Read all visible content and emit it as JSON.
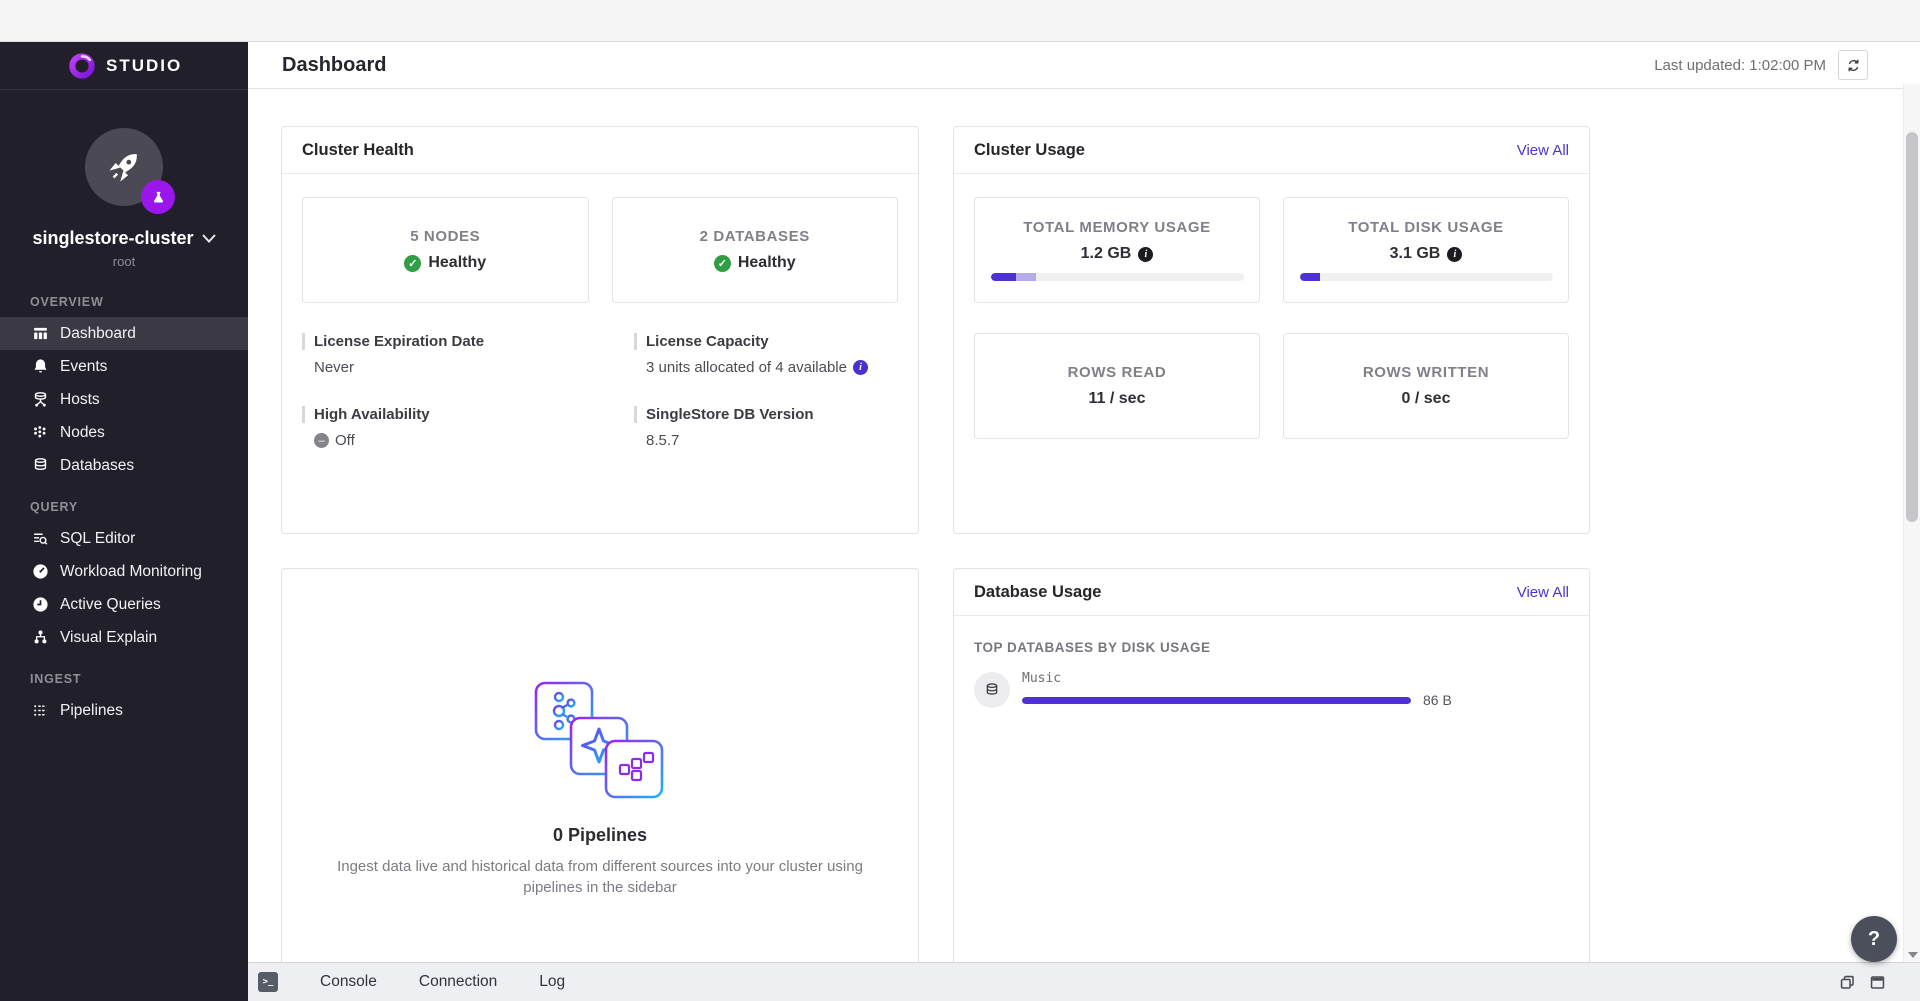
{
  "sidebar": {
    "logo_text": "STUDIO",
    "cluster_name": "singlestore-cluster",
    "cluster_user": "root",
    "sections": [
      {
        "label": "OVERVIEW",
        "items": [
          {
            "label": "Dashboard"
          },
          {
            "label": "Events"
          },
          {
            "label": "Hosts"
          },
          {
            "label": "Nodes"
          },
          {
            "label": "Databases"
          }
        ]
      },
      {
        "label": "QUERY",
        "items": [
          {
            "label": "SQL Editor"
          },
          {
            "label": "Workload Monitoring"
          },
          {
            "label": "Active Queries"
          },
          {
            "label": "Visual Explain"
          }
        ]
      },
      {
        "label": "INGEST",
        "items": [
          {
            "label": "Pipelines"
          }
        ]
      }
    ]
  },
  "header": {
    "title": "Dashboard",
    "last_updated": "Last updated: 1:02:00 PM"
  },
  "cluster_health": {
    "title": "Cluster Health",
    "stats": [
      {
        "label": "5 NODES",
        "status": "Healthy"
      },
      {
        "label": "2 DATABASES",
        "status": "Healthy"
      }
    ],
    "details": [
      {
        "label": "License Expiration Date",
        "value": "Never"
      },
      {
        "label": "License Capacity",
        "value": "3 units allocated of 4 available"
      },
      {
        "label": "High Availability",
        "value": "Off"
      },
      {
        "label": "SingleStore DB Version",
        "value": "8.5.7"
      }
    ]
  },
  "cluster_usage": {
    "title": "Cluster Usage",
    "view_all": "View All",
    "metrics": [
      {
        "label": "TOTAL MEMORY USAGE",
        "value": "1.2 GB",
        "bar": {
          "primary_pct": 10,
          "secondary_pct": 8
        }
      },
      {
        "label": "TOTAL DISK USAGE",
        "value": "3.1 GB",
        "bar": {
          "primary_pct": 8,
          "secondary_pct": 0
        }
      },
      {
        "label": "ROWS READ",
        "value": "11 / sec"
      },
      {
        "label": "ROWS WRITTEN",
        "value": "0 / sec"
      }
    ]
  },
  "pipelines_card": {
    "count_label": "0 Pipelines",
    "description": "Ingest data live and historical data from different sources into your cluster using pipelines in the sidebar"
  },
  "database_usage": {
    "title": "Database Usage",
    "view_all": "View All",
    "section_label": "TOP DATABASES BY DISK USAGE",
    "rows": [
      {
        "name": "Music",
        "size": "86 B",
        "bar_pct": 100
      }
    ]
  },
  "bottom_bar": {
    "terminal_glyph": ">_",
    "tabs": [
      "Console",
      "Connection",
      "Log"
    ]
  },
  "help_label": "?",
  "colors": {
    "accent_purple": "#4f31d1",
    "accent_purple_light": "#b7ace9",
    "link_purple": "#4e33cb",
    "healthy_green": "#2f9e44",
    "sidebar_bg": "#211f29",
    "badge_purple": "#9b16ea"
  }
}
